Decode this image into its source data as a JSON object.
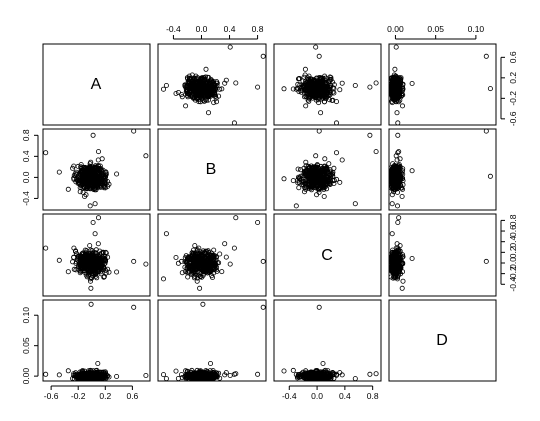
{
  "chart_data": {
    "type": "scatter",
    "variables": [
      "A",
      "B",
      "C",
      "D"
    ],
    "ranges": {
      "A": [
        -0.72,
        0.86
      ],
      "B": [
        -0.62,
        0.92
      ],
      "C": [
        -0.62,
        0.92
      ],
      "D": [
        -0.008,
        0.125
      ]
    },
    "axis_ticks": {
      "A": [
        "-0.6",
        "-0.2",
        "0.2",
        "0.6"
      ],
      "B": [
        "-0.4",
        "0.0",
        "0.4",
        "0.8"
      ],
      "C": [
        "-0.4",
        "0.0",
        "0.4",
        "0.8"
      ],
      "D": [
        "0.00",
        "0.05",
        "0.10"
      ]
    },
    "tick_values": {
      "A": [
        -0.6,
        -0.2,
        0.2,
        0.6
      ],
      "B": [
        -0.4,
        0.0,
        0.4,
        0.8
      ],
      "C": [
        -0.4,
        0.0,
        0.4,
        0.8
      ],
      "D": [
        0.0,
        0.05,
        0.1
      ]
    },
    "axis_ticks_vertical": {
      "A": [
        "-0.6",
        "-0.2",
        "0.2",
        "0.6"
      ],
      "B": [
        "-0.4",
        "0.0",
        "0.4",
        "0.8"
      ],
      "C": [
        "-0.4",
        "-0.2",
        "0.0",
        "0.2",
        "0.4",
        "0.6",
        "0.8"
      ],
      "D": [
        "0.00",
        "0.05",
        "0.10"
      ]
    },
    "tick_values_vertical": {
      "A": [
        -0.6,
        -0.2,
        0.2,
        0.6
      ],
      "B": [
        -0.4,
        0.0,
        0.4,
        0.8
      ],
      "C": [
        -0.4,
        -0.2,
        0.0,
        0.2,
        0.4,
        0.6,
        0.8
      ],
      "D": [
        0.0,
        0.05,
        0.1
      ]
    },
    "outliers": [
      {
        "A": 0.62,
        "B": 0.88,
        "C": 0.03,
        "D": 0.113
      },
      {
        "A": -0.68,
        "B": 0.47,
        "C": 0.28,
        "D": 0.003
      },
      {
        "A": 0.8,
        "B": 0.41,
        "C": -0.02,
        "D": 0.001
      },
      {
        "A": 0.02,
        "B": 0.8,
        "C": 0.76,
        "D": 0.003
      },
      {
        "A": 0.1,
        "B": 0.49,
        "C": 0.85,
        "D": 0.004
      },
      {
        "A": -0.01,
        "B": 0.02,
        "C": 0.92,
        "D": 0.118
      },
      {
        "A": 0.05,
        "B": -0.5,
        "C": 0.55,
        "D": -0.004
      },
      {
        "A": -0.48,
        "B": 0.1,
        "C": 0.05,
        "D": 0.002
      }
    ],
    "note_bulk": "dense cluster of several hundred points near 0 for A, B, C (sd ~0.12) and near 0.00 for D (sd ~0.004)",
    "grid": false,
    "legend": "none"
  }
}
